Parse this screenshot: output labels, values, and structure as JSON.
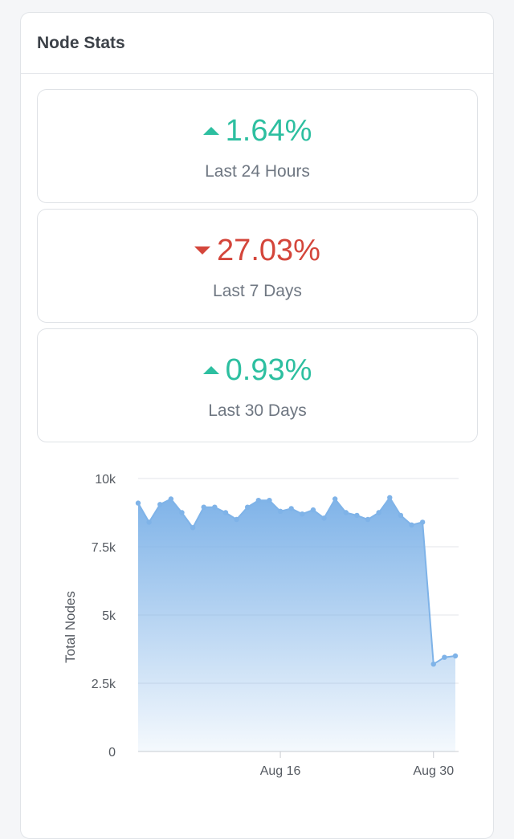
{
  "card": {
    "title": "Node Stats"
  },
  "stats": [
    {
      "value": "1.64%",
      "label": "Last 24 Hours",
      "direction": "up"
    },
    {
      "value": "27.03%",
      "label": "Last 7 Days",
      "direction": "down"
    },
    {
      "value": "0.93%",
      "label": "Last 30 Days",
      "direction": "up"
    }
  ],
  "colors": {
    "up": "#2dbfa0",
    "down": "#d4463b",
    "series": "#7fb3e8"
  },
  "chart_data": {
    "type": "area",
    "title": "",
    "xlabel": "",
    "ylabel": "Total Nodes",
    "ylim": [
      0,
      10000
    ],
    "yticks": [
      "0",
      "2.5k",
      "5k",
      "7.5k",
      "10k"
    ],
    "xticks": [
      "Aug 16",
      "Aug 30"
    ],
    "grid": true,
    "legend": "none",
    "series": [
      {
        "x": [
          "2023-08-03T00:00",
          "2023-08-04T00:00",
          "2023-08-05T00:00",
          "2023-08-06T00:00",
          "2023-08-07T00:00",
          "2023-08-08T00:00",
          "2023-08-09T00:00",
          "2023-08-10T00:00",
          "2023-08-11T00:00",
          "2023-08-12T00:00",
          "2023-08-13T00:00",
          "2023-08-14T00:00",
          "2023-08-15T00:00",
          "2023-08-16T00:00",
          "2023-08-17T00:00",
          "2023-08-18T00:00",
          "2023-08-19T00:00",
          "2023-08-20T00:00",
          "2023-08-21T00:00",
          "2023-08-22T00:00",
          "2023-08-23T00:00",
          "2023-08-24T00:00",
          "2023-08-25T00:00",
          "2023-08-26T00:00",
          "2023-08-27T00:00",
          "2023-08-28T00:00",
          "2023-08-29T00:00",
          "2023-08-30T00:00",
          "2023-08-31T00:00",
          "2023-09-01T00:00"
        ],
        "values": [
          9100,
          8400,
          9050,
          9250,
          8750,
          8200,
          8950,
          8950,
          8750,
          8500,
          8950,
          9200,
          9200,
          8800,
          8900,
          8700,
          8850,
          8550,
          9250,
          8750,
          8650,
          8500,
          8750,
          9300,
          8650,
          8300,
          8400,
          3200,
          3450,
          3500
        ]
      }
    ]
  }
}
